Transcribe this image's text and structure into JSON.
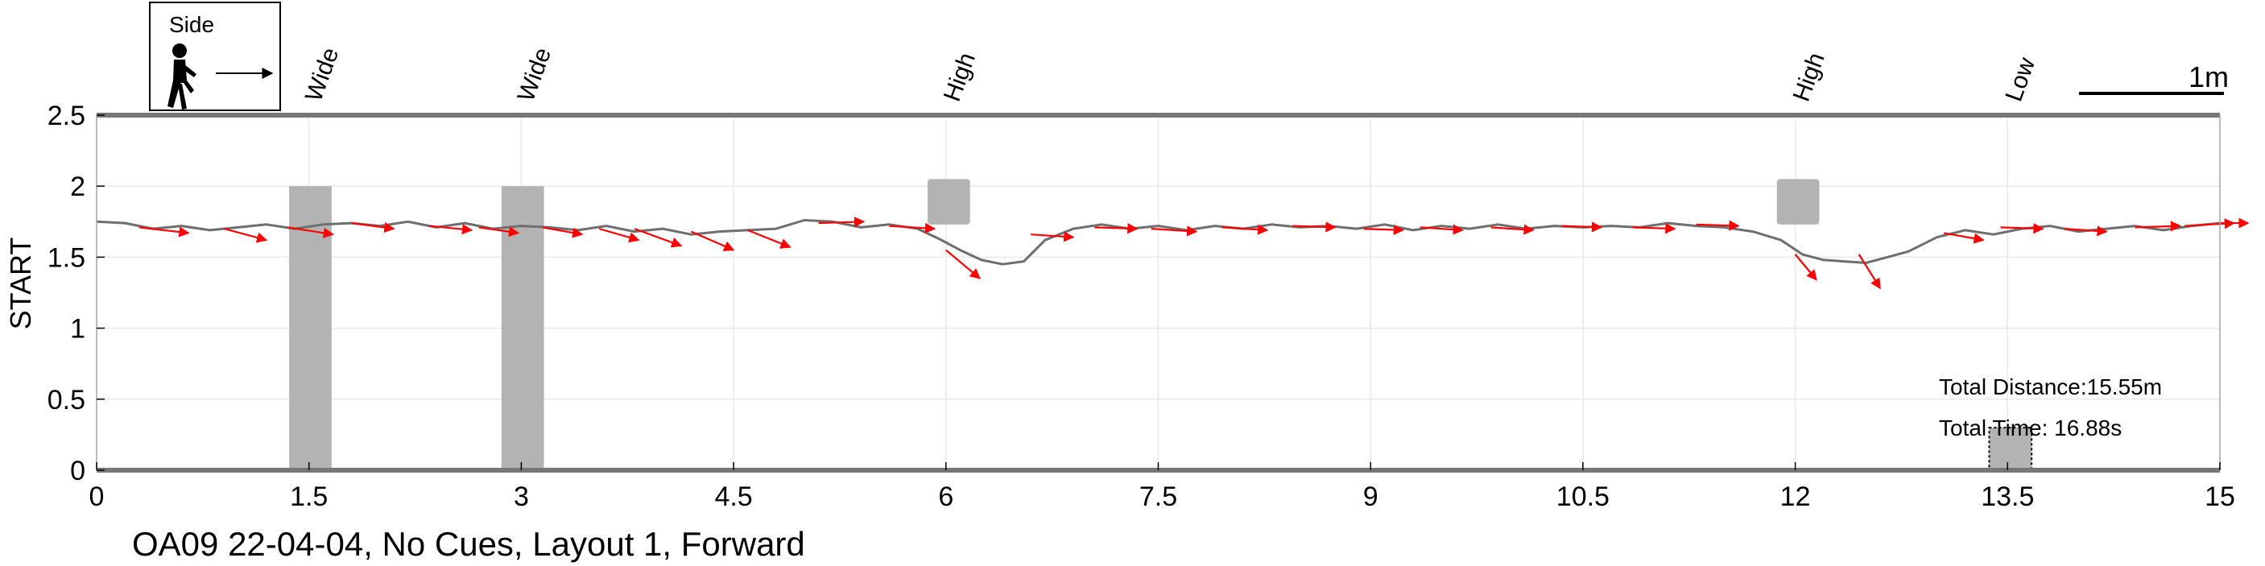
{
  "chart_data": {
    "type": "line",
    "title": "OA09 22-04-04, No Cues, Layout 1, Forward",
    "xlabel": "",
    "ylabel": "START",
    "xlim": [
      0,
      15
    ],
    "ylim": [
      0,
      2.5
    ],
    "x_ticks": [
      "0",
      "1.5",
      "3",
      "4.5",
      "6",
      "7.5",
      "9",
      "10.5",
      "12",
      "13.5",
      "15"
    ],
    "y_ticks": [
      "0",
      "0.5",
      "1",
      "1.5",
      "2",
      "2.5"
    ],
    "grid": true,
    "legend": {
      "label": "Side",
      "position": "top-left",
      "icon": "walking-person-icon"
    },
    "scale_bar": "1m",
    "total_distance": "Total Distance:15.55m",
    "total_time": "Total Time: 16.88s",
    "obstacles": [
      {
        "label": "Wide",
        "x": [
          1.36,
          1.66
        ],
        "y": [
          0,
          2
        ]
      },
      {
        "label": "Wide",
        "x": [
          2.86,
          3.16
        ],
        "y": [
          0,
          2
        ]
      },
      {
        "label": "High",
        "x": [
          5.87,
          6.17
        ],
        "y": [
          1.73,
          2.05
        ]
      },
      {
        "label": "High",
        "x": [
          11.87,
          12.17
        ],
        "y": [
          1.73,
          2.05
        ]
      },
      {
        "label": "Low",
        "x": [
          13.37,
          13.67
        ],
        "y": [
          0,
          0.3
        ]
      }
    ],
    "series": [
      {
        "x": [
          0,
          0.2,
          0.4,
          0.6,
          0.8,
          1.0,
          1.2,
          1.4,
          1.6,
          1.8,
          2.0,
          2.2,
          2.4,
          2.6,
          2.8,
          3.0,
          3.2,
          3.4,
          3.6,
          3.8,
          4.0,
          4.2,
          4.4,
          4.6,
          4.8,
          5.0,
          5.2,
          5.4,
          5.6,
          5.8,
          5.95,
          6.1,
          6.25,
          6.4,
          6.55,
          6.7,
          6.9,
          7.1,
          7.3,
          7.5,
          7.7,
          7.9,
          8.1,
          8.3,
          8.5,
          8.7,
          8.9,
          9.1,
          9.3,
          9.5,
          9.7,
          9.9,
          10.1,
          10.3,
          10.5,
          10.7,
          10.9,
          11.1,
          11.3,
          11.5,
          11.7,
          11.9,
          12.05,
          12.2,
          12.35,
          12.5,
          12.65,
          12.8,
          13.0,
          13.2,
          13.4,
          13.6,
          13.8,
          14.0,
          14.2,
          14.4,
          14.6,
          14.8,
          15.0
        ],
        "y": [
          1.75,
          1.74,
          1.7,
          1.72,
          1.69,
          1.71,
          1.73,
          1.7,
          1.73,
          1.74,
          1.72,
          1.75,
          1.71,
          1.74,
          1.7,
          1.72,
          1.71,
          1.69,
          1.72,
          1.68,
          1.7,
          1.66,
          1.68,
          1.69,
          1.7,
          1.76,
          1.75,
          1.71,
          1.73,
          1.7,
          1.63,
          1.55,
          1.48,
          1.45,
          1.47,
          1.62,
          1.7,
          1.73,
          1.7,
          1.72,
          1.69,
          1.72,
          1.7,
          1.73,
          1.71,
          1.72,
          1.7,
          1.73,
          1.69,
          1.72,
          1.7,
          1.73,
          1.7,
          1.72,
          1.71,
          1.72,
          1.71,
          1.74,
          1.72,
          1.71,
          1.68,
          1.62,
          1.52,
          1.48,
          1.47,
          1.46,
          1.5,
          1.54,
          1.64,
          1.69,
          1.66,
          1.7,
          1.72,
          1.68,
          1.7,
          1.72,
          1.69,
          1.72,
          1.74
        ]
      }
    ],
    "direction_arrows": [
      {
        "x": 0.3,
        "y": 1.71,
        "dx": 0.35,
        "dy": -0.04
      },
      {
        "x": 0.9,
        "y": 1.7,
        "dx": 0.3,
        "dy": -0.08
      },
      {
        "x": 1.35,
        "y": 1.71,
        "dx": 0.32,
        "dy": -0.05
      },
      {
        "x": 1.8,
        "y": 1.74,
        "dx": 0.3,
        "dy": -0.04
      },
      {
        "x": 2.35,
        "y": 1.72,
        "dx": 0.3,
        "dy": -0.03
      },
      {
        "x": 2.7,
        "y": 1.71,
        "dx": 0.28,
        "dy": -0.04
      },
      {
        "x": 3.15,
        "y": 1.71,
        "dx": 0.28,
        "dy": -0.05
      },
      {
        "x": 3.55,
        "y": 1.7,
        "dx": 0.28,
        "dy": -0.08
      },
      {
        "x": 3.8,
        "y": 1.7,
        "dx": 0.33,
        "dy": -0.12
      },
      {
        "x": 4.2,
        "y": 1.68,
        "dx": 0.3,
        "dy": -0.13
      },
      {
        "x": 4.6,
        "y": 1.69,
        "dx": 0.3,
        "dy": -0.12
      },
      {
        "x": 5.1,
        "y": 1.74,
        "dx": 0.32,
        "dy": 0.01
      },
      {
        "x": 5.6,
        "y": 1.72,
        "dx": 0.32,
        "dy": -0.02
      },
      {
        "x": 6.0,
        "y": 1.55,
        "dx": 0.24,
        "dy": -0.2
      },
      {
        "x": 6.6,
        "y": 1.66,
        "dx": 0.3,
        "dy": -0.02
      },
      {
        "x": 7.05,
        "y": 1.71,
        "dx": 0.3,
        "dy": -0.01
      },
      {
        "x": 7.45,
        "y": 1.7,
        "dx": 0.32,
        "dy": -0.02
      },
      {
        "x": 7.95,
        "y": 1.71,
        "dx": 0.32,
        "dy": -0.02
      },
      {
        "x": 8.45,
        "y": 1.72,
        "dx": 0.3,
        "dy": -0.01
      },
      {
        "x": 8.95,
        "y": 1.7,
        "dx": 0.28,
        "dy": -0.01
      },
      {
        "x": 9.35,
        "y": 1.71,
        "dx": 0.3,
        "dy": -0.02
      },
      {
        "x": 9.85,
        "y": 1.71,
        "dx": 0.3,
        "dy": -0.02
      },
      {
        "x": 10.35,
        "y": 1.72,
        "dx": 0.28,
        "dy": -0.01
      },
      {
        "x": 10.85,
        "y": 1.71,
        "dx": 0.3,
        "dy": -0.01
      },
      {
        "x": 11.3,
        "y": 1.73,
        "dx": 0.3,
        "dy": -0.01
      },
      {
        "x": 12.0,
        "y": 1.52,
        "dx": 0.15,
        "dy": -0.18
      },
      {
        "x": 12.45,
        "y": 1.52,
        "dx": 0.15,
        "dy": -0.24
      },
      {
        "x": 13.05,
        "y": 1.67,
        "dx": 0.28,
        "dy": -0.05
      },
      {
        "x": 13.45,
        "y": 1.71,
        "dx": 0.3,
        "dy": -0.01
      },
      {
        "x": 13.9,
        "y": 1.7,
        "dx": 0.3,
        "dy": -0.02
      },
      {
        "x": 14.4,
        "y": 1.71,
        "dx": 0.32,
        "dy": 0.01
      },
      {
        "x": 14.75,
        "y": 1.72,
        "dx": 0.35,
        "dy": 0.02
      },
      {
        "x": 15.0,
        "y": 1.74,
        "dx": 0.2,
        "dy": 0.0
      }
    ],
    "colors": {
      "path": "#6e6e6e",
      "arrow": "#ff0000",
      "obstacle": "#b3b3b3",
      "axis_frame": "#777777",
      "grid": "#e8e8e8"
    }
  }
}
